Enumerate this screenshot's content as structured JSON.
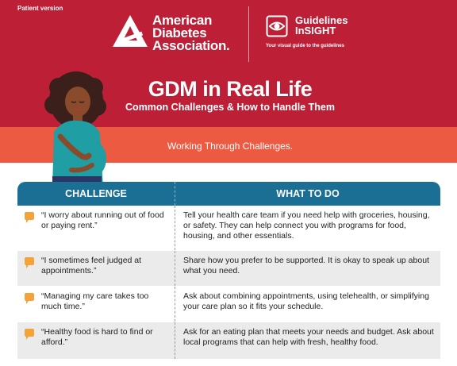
{
  "header": {
    "version_tag": "Patient version",
    "ada_lines": [
      "American",
      "Diabetes",
      "Association."
    ],
    "gi_lines": [
      "Guidelines",
      "InSIGHT"
    ],
    "gi_tagline": "Your visual guide to the guidelines",
    "title": "GDM in Real Life",
    "subtitle": "Common Challenges & How to Handle Them"
  },
  "band": {
    "text": "Working Through Challenges."
  },
  "table": {
    "headers": [
      "CHALLENGE",
      "WHAT TO DO"
    ],
    "rows": [
      {
        "challenge": "“I worry about running out of food or paying rent.”",
        "action": "Tell your health care team if you need help with groceries, housing, or safety. They can help connect you with programs for food, housing, and other essentials."
      },
      {
        "challenge": "“I sometimes feel judged at appointments.”",
        "action": "Share how you prefer to be supported. It is okay to speak up about what you need."
      },
      {
        "challenge": "“Managing my care takes too much time.”",
        "action": "Ask about combining appointments, using telehealth, or simplifying your care plan so it fits your schedule."
      },
      {
        "challenge": "“Healthy food is hard to find or afford.”",
        "action": "Ask for an eating plan that meets your needs and budget. Ask about local programs that can help with fresh, healthy food."
      }
    ]
  },
  "colors": {
    "header_red": "#bc1f36",
    "band_coral": "#ec5a42",
    "table_blue": "#1b6f94",
    "bubble_orange": "#f3a33a"
  },
  "icons": [
    "ada-triangle-logo",
    "eye-icon",
    "speech-bubble-icon"
  ]
}
